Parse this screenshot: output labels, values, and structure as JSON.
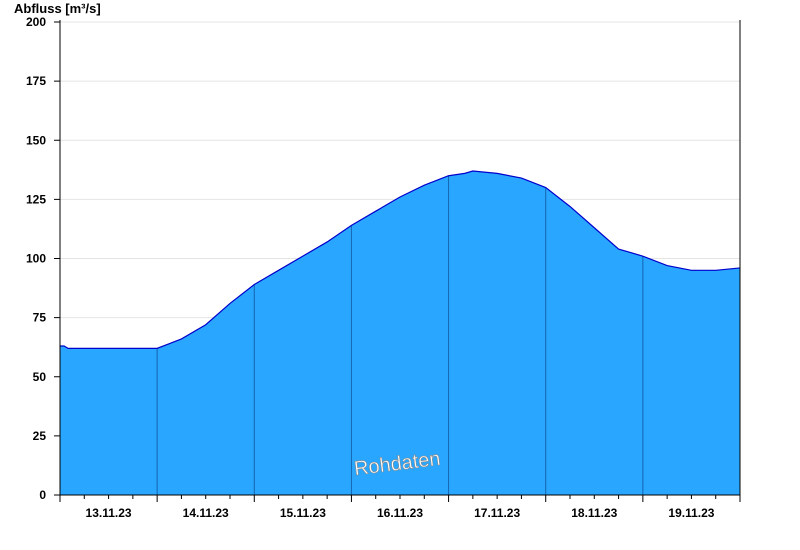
{
  "chart_data": {
    "type": "area",
    "ylabel": "Abfluss [m³/s]",
    "watermark": "Rohdaten",
    "ylim": [
      0,
      200
    ],
    "yticks": [
      0,
      25,
      50,
      75,
      100,
      125,
      150,
      175,
      200
    ],
    "x_days": [
      "13.11.23",
      "14.11.23",
      "15.11.23",
      "16.11.23",
      "17.11.23",
      "18.11.23",
      "19.11.23"
    ],
    "xlim": [
      "12.11.23 23:00",
      "19.11.23 23:00"
    ],
    "grid": true,
    "fill_color": "#29a6ff",
    "line_color": "#0000cc",
    "x_hours": [
      0,
      1,
      2,
      6,
      12,
      18,
      24,
      27,
      30,
      36,
      42,
      48,
      54,
      60,
      66,
      72,
      78,
      84,
      90,
      96,
      100,
      102,
      108,
      114,
      120,
      126,
      132,
      138,
      144,
      150,
      156,
      162,
      168
    ],
    "values": [
      63,
      63,
      62,
      62,
      62,
      62,
      62,
      64,
      66,
      72,
      81,
      89,
      95,
      101,
      107,
      114,
      120,
      126,
      131,
      135,
      136,
      137,
      136,
      134,
      130,
      122,
      113,
      104,
      101,
      97,
      95,
      95,
      96
    ]
  }
}
